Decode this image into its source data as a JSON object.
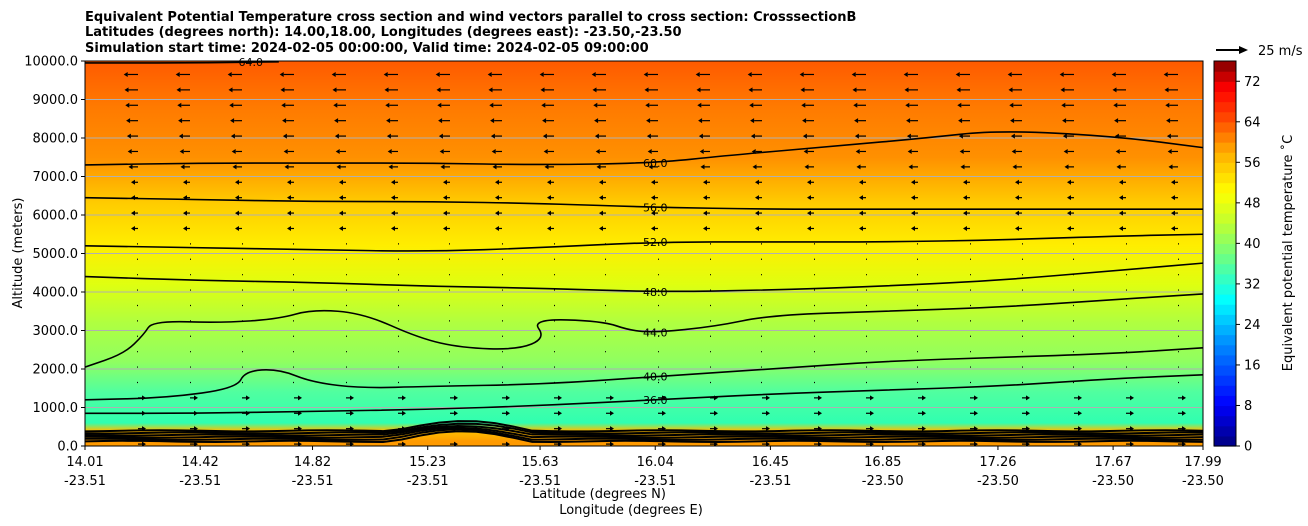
{
  "chart_data": {
    "type": "contour",
    "title_lines": [
      "Equivalent Potential Temperature cross section and wind vectors parallel to cross section: CrosssectionB",
      "Latitudes (degrees north): 14.00,18.00, Longitudes (degrees east): -23.50,-23.50",
      "Simulation start time: 2024-02-05 00:00:00, Valid time: 2024-02-05 09:00:00"
    ],
    "xlabel": "Latitude (degrees N)",
    "xlabel2": "Longitude (degrees E)",
    "ylabel": "Altitude (meters)",
    "xlim": [
      14.01,
      17.99
    ],
    "ylim": [
      0,
      10000
    ],
    "x_ticks": [
      {
        "value": 14.01,
        "lat": "14.01",
        "lon": "-23.51"
      },
      {
        "value": 14.42,
        "lat": "14.42",
        "lon": "-23.51"
      },
      {
        "value": 14.82,
        "lat": "14.82",
        "lon": "-23.51"
      },
      {
        "value": 15.23,
        "lat": "15.23",
        "lon": "-23.51"
      },
      {
        "value": 15.63,
        "lat": "15.63",
        "lon": "-23.51"
      },
      {
        "value": 16.04,
        "lat": "16.04",
        "lon": "-23.51"
      },
      {
        "value": 16.45,
        "lat": "16.45",
        "lon": "-23.51"
      },
      {
        "value": 16.85,
        "lat": "16.85",
        "lon": "-23.50"
      },
      {
        "value": 17.26,
        "lat": "17.26",
        "lon": "-23.50"
      },
      {
        "value": 17.67,
        "lat": "17.67",
        "lon": "-23.50"
      },
      {
        "value": 17.99,
        "lat": "17.99",
        "lon": "-23.50"
      }
    ],
    "y_ticks": [
      "0.0",
      "1000.0",
      "2000.0",
      "3000.0",
      "4000.0",
      "5000.0",
      "6000.0",
      "7000.0",
      "8000.0",
      "9000.0",
      "10000.0"
    ],
    "grid": true,
    "colorbar": {
      "label": "Equivalent potential temperature $^\\circ$C",
      "label_text": "Equivalent potential temperature ˚C",
      "range": [
        0,
        76
      ],
      "ticks": [
        "0",
        "8",
        "16",
        "24",
        "32",
        "40",
        "48",
        "56",
        "64",
        "72"
      ]
    },
    "quiver_key": {
      "label": "25 m/s",
      "speed": 25
    },
    "contours": [
      {
        "level": 36,
        "label": "36.0",
        "points": [
          [
            14.01,
            850
          ],
          [
            14.42,
            850
          ],
          [
            14.82,
            900
          ],
          [
            15.23,
            950
          ],
          [
            15.63,
            1050
          ],
          [
            16.04,
            1200
          ],
          [
            16.45,
            1350
          ],
          [
            16.85,
            1450
          ],
          [
            17.26,
            1550
          ],
          [
            17.67,
            1750
          ],
          [
            17.99,
            1850
          ]
        ]
      },
      {
        "level": 40,
        "label": "40.0",
        "points": [
          [
            14.01,
            1200
          ],
          [
            14.3,
            1250
          ],
          [
            14.55,
            1500
          ],
          [
            14.58,
            1950
          ],
          [
            14.7,
            2000
          ],
          [
            14.82,
            1650
          ],
          [
            15.0,
            1500
          ],
          [
            15.23,
            1550
          ],
          [
            15.63,
            1600
          ],
          [
            16.04,
            1800
          ],
          [
            16.45,
            2000
          ],
          [
            16.85,
            2200
          ],
          [
            17.26,
            2300
          ],
          [
            17.67,
            2400
          ],
          [
            17.99,
            2550
          ]
        ]
      },
      {
        "level": 44,
        "label": "44.0",
        "points": [
          [
            14.01,
            2050
          ],
          [
            14.15,
            2400
          ],
          [
            14.22,
            2900
          ],
          [
            14.25,
            3250
          ],
          [
            14.5,
            3200
          ],
          [
            14.7,
            3300
          ],
          [
            14.82,
            3550
          ],
          [
            15.0,
            3450
          ],
          [
            15.2,
            2800
          ],
          [
            15.35,
            2550
          ],
          [
            15.55,
            2500
          ],
          [
            15.65,
            2800
          ],
          [
            15.6,
            3300
          ],
          [
            15.85,
            3250
          ],
          [
            15.95,
            3000
          ],
          [
            16.04,
            2950
          ],
          [
            16.25,
            3100
          ],
          [
            16.45,
            3400
          ],
          [
            16.85,
            3500
          ],
          [
            17.26,
            3600
          ],
          [
            17.67,
            3800
          ],
          [
            17.99,
            3950
          ]
        ]
      },
      {
        "level": 48,
        "label": "48.0",
        "points": [
          [
            14.01,
            4400
          ],
          [
            14.42,
            4300
          ],
          [
            14.82,
            4250
          ],
          [
            15.23,
            4150
          ],
          [
            15.63,
            4100
          ],
          [
            16.04,
            4000
          ],
          [
            16.45,
            4050
          ],
          [
            16.85,
            4150
          ],
          [
            17.26,
            4300
          ],
          [
            17.67,
            4550
          ],
          [
            17.99,
            4750
          ]
        ]
      },
      {
        "level": 52,
        "label": "52.0",
        "points": [
          [
            14.01,
            5200
          ],
          [
            14.42,
            5150
          ],
          [
            14.82,
            5100
          ],
          [
            15.23,
            5050
          ],
          [
            15.63,
            5150
          ],
          [
            16.04,
            5300
          ],
          [
            16.45,
            5300
          ],
          [
            16.85,
            5300
          ],
          [
            17.26,
            5350
          ],
          [
            17.67,
            5450
          ],
          [
            17.99,
            5500
          ]
        ]
      },
      {
        "level": 56,
        "label": "56.0",
        "points": [
          [
            14.01,
            6450
          ],
          [
            14.42,
            6400
          ],
          [
            14.82,
            6350
          ],
          [
            15.23,
            6350
          ],
          [
            15.63,
            6300
          ],
          [
            16.04,
            6200
          ],
          [
            16.45,
            6150
          ],
          [
            16.85,
            6150
          ],
          [
            17.26,
            6150
          ],
          [
            17.67,
            6150
          ],
          [
            17.99,
            6150
          ]
        ]
      },
      {
        "level": 60,
        "label": "60.0",
        "points": [
          [
            14.01,
            7300
          ],
          [
            14.42,
            7350
          ],
          [
            14.82,
            7350
          ],
          [
            15.23,
            7350
          ],
          [
            15.63,
            7300
          ],
          [
            16.04,
            7350
          ],
          [
            16.3,
            7550
          ],
          [
            16.7,
            7800
          ],
          [
            17.0,
            8000
          ],
          [
            17.26,
            8200
          ],
          [
            17.67,
            8050
          ],
          [
            17.99,
            7750
          ]
        ]
      },
      {
        "level": 64,
        "label": "64.0",
        "points": [
          [
            14.01,
            9950
          ],
          [
            14.42,
            9950
          ],
          [
            14.7,
            9980
          ]
        ]
      }
    ]
  }
}
